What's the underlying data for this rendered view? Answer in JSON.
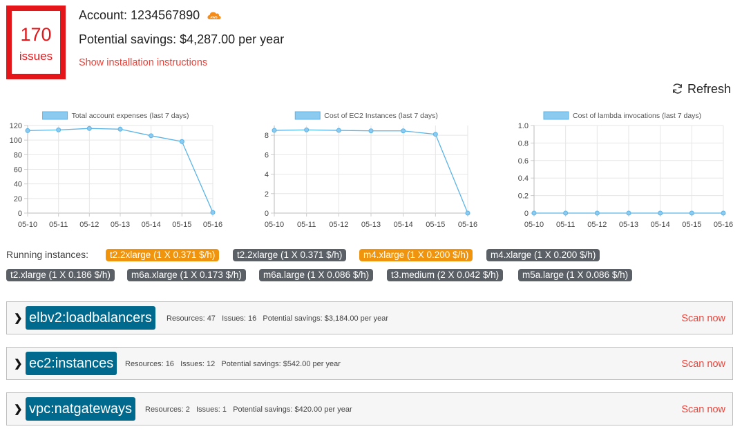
{
  "header": {
    "issues_count": "170",
    "issues_label": "issues",
    "account_label": "Account: 1234567890",
    "provider_icon": "aws-cloud-icon",
    "aws_badge_text": "AWS",
    "savings_label": "Potential savings: $4,287.00 per year",
    "install_link": "Show installation instructions",
    "refresh_label": "Refresh"
  },
  "colors": {
    "accent_red": "#e4161a",
    "link_red": "#e8433a",
    "chart_line": "#5ab4e5",
    "badge_gray": "#5a6066",
    "badge_orange": "#f0940e",
    "service_blue": "#006a8e"
  },
  "chart_data": [
    {
      "type": "line",
      "title": "Total account expenses (last 7 days)",
      "categories": [
        "05-10",
        "05-11",
        "05-12",
        "05-13",
        "05-14",
        "05-15",
        "05-16"
      ],
      "values": [
        113,
        114,
        116,
        115,
        106,
        98,
        1
      ],
      "ylim": [
        0,
        120
      ],
      "yticks": [
        0,
        20,
        40,
        60,
        80,
        100,
        120
      ],
      "grid": true,
      "legend": "top"
    },
    {
      "type": "line",
      "title": "Cost of EC2 Instances (last 7 days)",
      "categories": [
        "05-10",
        "05-11",
        "05-12",
        "05-13",
        "05-14",
        "05-15",
        "05-16"
      ],
      "values": [
        8.5,
        8.55,
        8.5,
        8.45,
        8.45,
        8.1,
        0
      ],
      "ylim": [
        0,
        9
      ],
      "yticks": [
        0,
        2,
        4,
        6,
        8
      ],
      "grid": true,
      "legend": "top"
    },
    {
      "type": "line",
      "title": "Cost of lambda invocations (last 7 days)",
      "categories": [
        "05-10",
        "05-11",
        "05-12",
        "05-13",
        "05-14",
        "05-15",
        "05-16"
      ],
      "values": [
        0,
        0,
        0,
        0,
        0,
        0,
        0
      ],
      "ylim": [
        0,
        1
      ],
      "yticks": [
        "0",
        "0.2",
        "0.4",
        "0.6",
        "0.8",
        "1.0"
      ],
      "grid": true,
      "legend": "top"
    }
  ],
  "running": {
    "label": "Running instances:",
    "badges": [
      {
        "text": "t2.2xlarge (1 X 0.371 $/h)",
        "color": "orange"
      },
      {
        "text": "t2.2xlarge (1 X 0.371 $/h)",
        "color": "gray"
      },
      {
        "text": "m4.xlarge (1 X 0.200 $/h)",
        "color": "orange"
      },
      {
        "text": "m4.xlarge (1 X 0.200 $/h)",
        "color": "gray"
      },
      {
        "text": "t2.xlarge (1 X 0.186 $/h)",
        "color": "gray"
      },
      {
        "text": "m6a.xlarge (1 X 0.173 $/h)",
        "color": "gray"
      },
      {
        "text": "m6a.large (1 X 0.086 $/h)",
        "color": "gray"
      },
      {
        "text": "t3.medium (2 X 0.042 $/h)",
        "color": "gray"
      },
      {
        "text": "m5a.large (1 X 0.086 $/h)",
        "color": "gray"
      }
    ]
  },
  "services": [
    {
      "name": "elbv2:loadbalancers",
      "resources": "Resources: 47",
      "issues": "Issues: 16",
      "savings": "Potential savings: $3,184.00 per year",
      "action": "Scan now"
    },
    {
      "name": "ec2:instances",
      "resources": "Resources: 16",
      "issues": "Issues: 12",
      "savings": "Potential savings: $542.00 per year",
      "action": "Scan now"
    },
    {
      "name": "vpc:natgateways",
      "resources": "Resources: 2",
      "issues": "Issues: 1",
      "savings": "Potential savings: $420.00 per year",
      "action": "Scan now"
    }
  ]
}
